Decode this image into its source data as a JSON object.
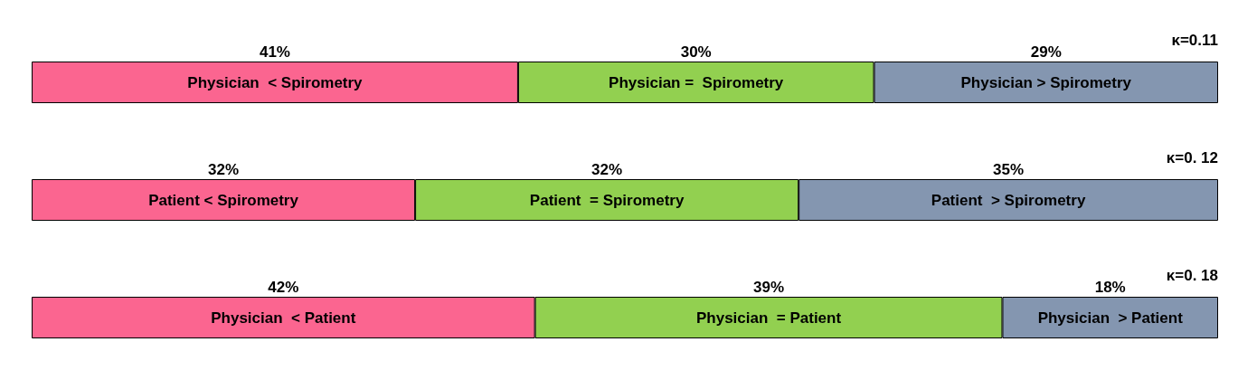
{
  "chart_data": [
    {
      "type": "bar",
      "orientation": "horizontal",
      "stacked": true,
      "categories": [
        null
      ],
      "annotations": [
        "κ=0.11"
      ],
      "series": [
        {
          "name": "Physician  < Spirometry",
          "color": "#fb6590",
          "values": [
            41
          ],
          "value_labels": [
            "41%"
          ]
        },
        {
          "name": "Physician =  Spirometry",
          "color": "#92d050",
          "values": [
            30
          ],
          "value_labels": [
            "30%"
          ]
        },
        {
          "name": "Physician > Spirometry",
          "color": "#8496b0",
          "values": [
            29
          ],
          "value_labels": [
            "29%"
          ]
        }
      ]
    },
    {
      "type": "bar",
      "orientation": "horizontal",
      "stacked": true,
      "categories": [
        null
      ],
      "annotations": [
        "κ=0. 12"
      ],
      "series": [
        {
          "name": "Patient < Spirometry",
          "color": "#fb6590",
          "values": [
            32
          ],
          "value_labels": [
            "32%"
          ]
        },
        {
          "name": "Patient  = Spirometry",
          "color": "#92d050",
          "values": [
            32
          ],
          "value_labels": [
            "32%"
          ]
        },
        {
          "name": "Patient  > Spirometry",
          "color": "#8496b0",
          "values": [
            35
          ],
          "value_labels": [
            "35%"
          ]
        }
      ]
    },
    {
      "type": "bar",
      "orientation": "horizontal",
      "stacked": true,
      "categories": [
        null
      ],
      "annotations": [
        "κ=0. 18"
      ],
      "series": [
        {
          "name": "Physician  < Patient",
          "color": "#fb6590",
          "values": [
            42
          ],
          "value_labels": [
            "42%"
          ]
        },
        {
          "name": "Physician  = Patient",
          "color": "#92d050",
          "values": [
            39
          ],
          "value_labels": [
            "39%"
          ]
        },
        {
          "name": "Physician  > Patient",
          "color": "#8496b0",
          "values": [
            18
          ],
          "value_labels": [
            "18%"
          ]
        }
      ]
    }
  ]
}
